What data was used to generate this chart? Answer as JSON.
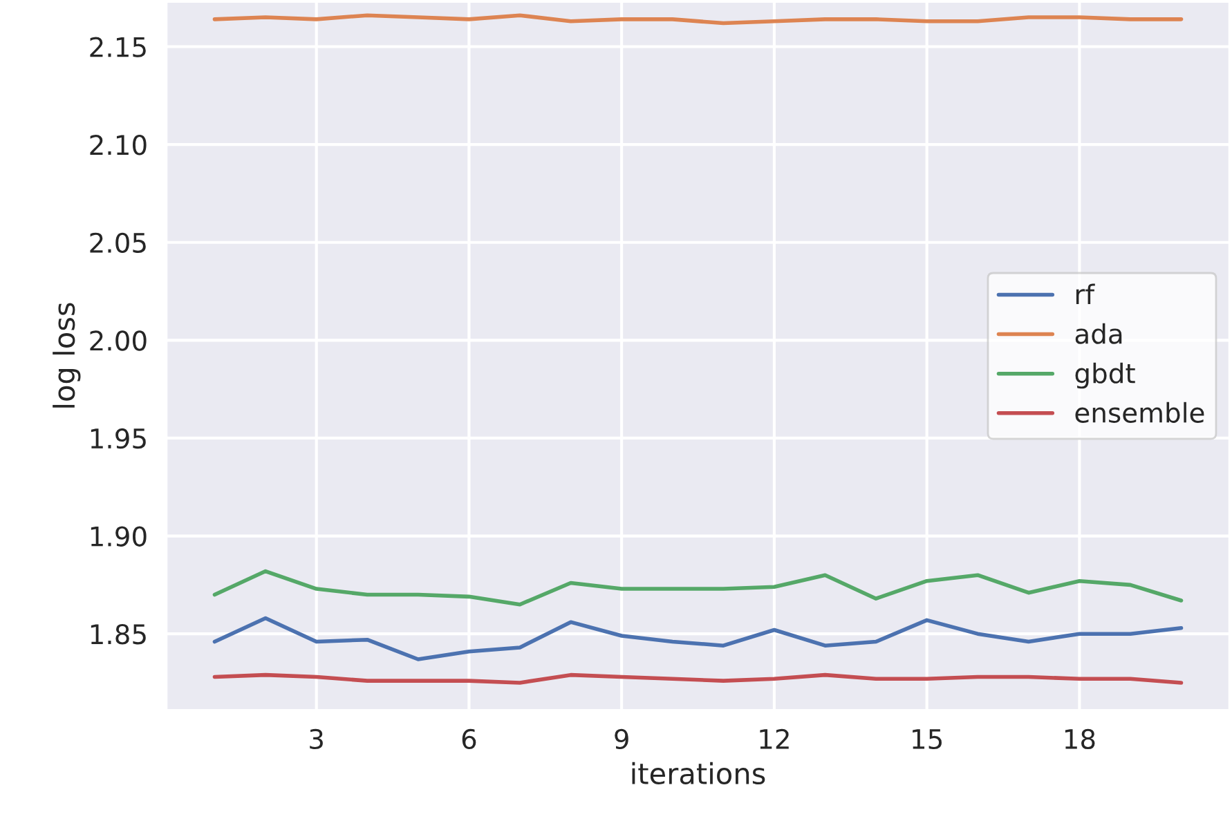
{
  "chart_data": {
    "type": "line",
    "xlabel": "iterations",
    "ylabel": "log loss",
    "x": [
      1,
      2,
      3,
      4,
      5,
      6,
      7,
      8,
      9,
      10,
      11,
      12,
      13,
      14,
      15,
      16,
      17,
      18,
      19,
      20
    ],
    "xlim": [
      0.05,
      20.95
    ],
    "xticks": [
      3,
      6,
      9,
      12,
      15,
      18
    ],
    "ylim": [
      1.811,
      2.173
    ],
    "yticks": [
      1.85,
      {
        "value": 1.9,
        "label": "1.90"
      },
      1.95,
      {
        "value": 2,
        "label": "2.00"
      },
      2.05,
      {
        "value": 2.1,
        "label": "2.10"
      },
      2.15
    ],
    "grid": true,
    "legend": "center right",
    "series": [
      {
        "name": "rf",
        "color": "#4c72b0",
        "values": [
          1.846,
          1.858,
          1.846,
          1.847,
          1.837,
          1.841,
          1.843,
          1.856,
          1.849,
          1.846,
          1.844,
          1.852,
          1.844,
          1.846,
          1.857,
          1.85,
          1.846,
          1.85,
          1.85,
          1.853
        ]
      },
      {
        "name": "ada",
        "color": "#dd8452",
        "values": [
          2.164,
          2.165,
          2.164,
          2.166,
          2.165,
          2.164,
          2.166,
          2.163,
          2.164,
          2.164,
          2.162,
          2.163,
          2.164,
          2.164,
          2.163,
          2.163,
          2.165,
          2.165,
          2.164,
          2.164
        ]
      },
      {
        "name": "gbdt",
        "color": "#55a868",
        "values": [
          1.87,
          1.882,
          1.873,
          1.87,
          1.87,
          1.869,
          1.865,
          1.876,
          1.873,
          1.873,
          1.873,
          1.874,
          1.88,
          1.868,
          1.877,
          1.88,
          1.871,
          1.877,
          1.875,
          1.867
        ]
      },
      {
        "name": "ensemble",
        "color": "#c44e52",
        "values": [
          1.828,
          1.829,
          1.828,
          1.826,
          1.826,
          1.826,
          1.825,
          1.829,
          1.828,
          1.827,
          1.826,
          1.827,
          1.829,
          1.827,
          1.827,
          1.828,
          1.828,
          1.827,
          1.827,
          1.825
        ]
      }
    ]
  }
}
